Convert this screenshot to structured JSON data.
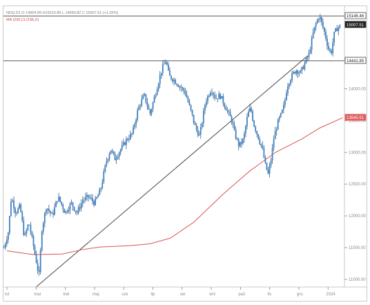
{
  "chart_data": {
    "type": "candlestick",
    "header": "NDQ.D1 O 14994.99 H15010.85 L 14960.82 C 15007.51 (+1.02%)",
    "ma_label": "MA (200,CLOSE,0)",
    "x_ticks": [
      "lut",
      "mar",
      "kwi",
      "maj",
      "cze",
      "lip",
      "sie",
      "wrz",
      "paź",
      "lis",
      "gru",
      "2024"
    ],
    "y_ticks": [
      11000,
      11500,
      12000,
      12500,
      13000,
      13500,
      14000
    ],
    "ylim": [
      10880,
      15300
    ],
    "price_labels": [
      {
        "text": "15146.46",
        "value": 15146.46,
        "style": "box"
      },
      {
        "text": "15007.51",
        "value": 15007.51,
        "style": "dark"
      },
      {
        "text": "14441.85",
        "value": 14441.85,
        "style": "box"
      },
      {
        "text": "13545.51",
        "value": 13545.51,
        "style": "red"
      }
    ],
    "horizontal_lines": [
      15146.46,
      14441.85
    ],
    "trendline": {
      "from": {
        "month_index": 1,
        "value": 10880
      },
      "to": {
        "month_index": 10.3,
        "value": 14520
      }
    },
    "ma_series": {
      "name": "MA (200,CLOSE,0)",
      "points": [
        [
          0,
          11450
        ],
        [
          0.9,
          11390
        ],
        [
          1.9,
          11400
        ],
        [
          2.6,
          11470
        ],
        [
          3.2,
          11510
        ],
        [
          4.2,
          11530
        ],
        [
          4.9,
          11560
        ],
        [
          5.6,
          11650
        ],
        [
          6.4,
          11900
        ],
        [
          7.4,
          12340
        ],
        [
          8.3,
          12700
        ],
        [
          9.2,
          13000
        ],
        [
          10.1,
          13210
        ],
        [
          10.7,
          13380
        ],
        [
          11.5,
          13545
        ]
      ]
    },
    "close_series": {
      "name": "NDQ",
      "points": [
        [
          -0.1,
          11500
        ],
        [
          0.05,
          11750
        ],
        [
          0.15,
          12300
        ],
        [
          0.3,
          12050
        ],
        [
          0.45,
          12150
        ],
        [
          0.6,
          11650
        ],
        [
          0.75,
          11900
        ],
        [
          0.9,
          11550
        ],
        [
          1.0,
          11300
        ],
        [
          1.1,
          11050
        ],
        [
          1.2,
          11800
        ],
        [
          1.35,
          12150
        ],
        [
          1.55,
          12000
        ],
        [
          1.75,
          12300
        ],
        [
          2.0,
          12050
        ],
        [
          2.2,
          12200
        ],
        [
          2.4,
          12050
        ],
        [
          2.6,
          12250
        ],
        [
          2.8,
          12300
        ],
        [
          3.0,
          12200
        ],
        [
          3.2,
          12400
        ],
        [
          3.4,
          12850
        ],
        [
          3.55,
          13050
        ],
        [
          3.7,
          12900
        ],
        [
          3.9,
          13050
        ],
        [
          4.1,
          13200
        ],
        [
          4.3,
          13300
        ],
        [
          4.5,
          13700
        ],
        [
          4.7,
          13900
        ],
        [
          4.9,
          13600
        ],
        [
          5.1,
          13950
        ],
        [
          5.3,
          14300
        ],
        [
          5.45,
          14450
        ],
        [
          5.55,
          14200
        ],
        [
          5.7,
          14150
        ],
        [
          5.9,
          14050
        ],
        [
          6.1,
          13950
        ],
        [
          6.3,
          13650
        ],
        [
          6.45,
          13400
        ],
        [
          6.6,
          13250
        ],
        [
          6.8,
          13800
        ],
        [
          7.0,
          14000
        ],
        [
          7.15,
          13850
        ],
        [
          7.3,
          13900
        ],
        [
          7.5,
          13700
        ],
        [
          7.7,
          13500
        ],
        [
          7.8,
          13300
        ],
        [
          7.95,
          13100
        ],
        [
          8.1,
          13200
        ],
        [
          8.25,
          13600
        ],
        [
          8.35,
          13700
        ],
        [
          8.45,
          13450
        ],
        [
          8.6,
          13250
        ],
        [
          8.75,
          13050
        ],
        [
          8.85,
          12800
        ],
        [
          8.95,
          12650
        ],
        [
          9.05,
          12900
        ],
        [
          9.15,
          13250
        ],
        [
          9.3,
          13500
        ],
        [
          9.4,
          13600
        ],
        [
          9.5,
          13750
        ],
        [
          9.6,
          14050
        ],
        [
          9.75,
          14200
        ],
        [
          9.9,
          14300
        ],
        [
          10.05,
          14250
        ],
        [
          10.2,
          14400
        ],
        [
          10.35,
          14550
        ],
        [
          10.5,
          14900
        ],
        [
          10.6,
          15050
        ],
        [
          10.7,
          15150
        ],
        [
          10.8,
          15000
        ],
        [
          10.9,
          14850
        ],
        [
          11.0,
          14650
        ],
        [
          11.1,
          14550
        ],
        [
          11.2,
          14850
        ],
        [
          11.3,
          14950
        ],
        [
          11.45,
          15000
        ]
      ]
    }
  }
}
